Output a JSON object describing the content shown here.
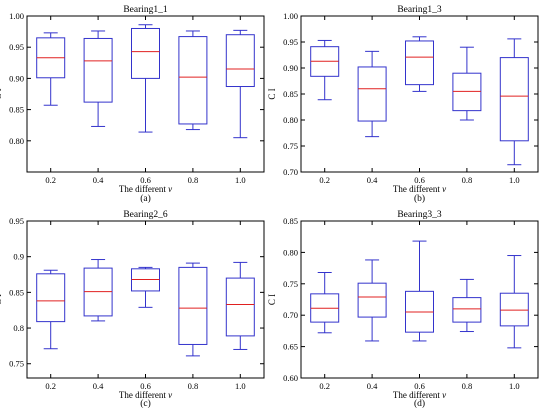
{
  "chart_data": [
    {
      "type": "box",
      "title": "Bearing1_1",
      "ylabel": "C I",
      "xlabel": "The different v",
      "caption": "(a)",
      "categories": [
        "0.2",
        "0.4",
        "0.6",
        "0.8",
        "1.0"
      ],
      "ylim": [
        0.75,
        1.0
      ],
      "yticks": [
        0.8,
        0.85,
        0.9,
        0.95,
        1.0
      ],
      "ytick_labels": [
        "0.80",
        "0.85",
        "0.90",
        "0.95",
        "1.00"
      ],
      "boxes": [
        {
          "min": 0.857,
          "q1": 0.901,
          "median": 0.933,
          "q3": 0.965,
          "max": 0.973
        },
        {
          "min": 0.823,
          "q1": 0.862,
          "median": 0.928,
          "q3": 0.964,
          "max": 0.976
        },
        {
          "min": 0.814,
          "q1": 0.9,
          "median": 0.943,
          "q3": 0.98,
          "max": 0.986
        },
        {
          "min": 0.818,
          "q1": 0.827,
          "median": 0.902,
          "q3": 0.967,
          "max": 0.976
        },
        {
          "min": 0.805,
          "q1": 0.887,
          "median": 0.915,
          "q3": 0.97,
          "max": 0.977
        }
      ]
    },
    {
      "type": "box",
      "title": "Bearing1_3",
      "ylabel": "C I",
      "xlabel": "The different v",
      "caption": "(b)",
      "categories": [
        "0.2",
        "0.4",
        "0.6",
        "0.8",
        "1.0"
      ],
      "ylim": [
        0.7,
        1.0
      ],
      "yticks": [
        0.7,
        0.75,
        0.8,
        0.85,
        0.9,
        0.95,
        1.0
      ],
      "ytick_labels": [
        "0.70",
        "0.75",
        "0.80",
        "0.85",
        "0.90",
        "0.95",
        "1.00"
      ],
      "boxes": [
        {
          "min": 0.839,
          "q1": 0.884,
          "median": 0.913,
          "q3": 0.941,
          "max": 0.953
        },
        {
          "min": 0.768,
          "q1": 0.798,
          "median": 0.86,
          "q3": 0.902,
          "max": 0.932
        },
        {
          "min": 0.855,
          "q1": 0.868,
          "median": 0.921,
          "q3": 0.952,
          "max": 0.96
        },
        {
          "min": 0.8,
          "q1": 0.818,
          "median": 0.855,
          "q3": 0.89,
          "max": 0.94
        },
        {
          "min": 0.714,
          "q1": 0.76,
          "median": 0.846,
          "q3": 0.92,
          "max": 0.956
        }
      ]
    },
    {
      "type": "box",
      "title": "Bearing2_6",
      "ylabel": "C I",
      "xlabel": "The different v",
      "caption": "(c)",
      "categories": [
        "0.2",
        "0.4",
        "0.6",
        "0.8",
        "1.0"
      ],
      "ylim": [
        0.73,
        0.95
      ],
      "yticks": [
        0.75,
        0.8,
        0.85,
        0.9,
        0.95
      ],
      "ytick_labels": [
        "0.75",
        "0.8",
        "0.85",
        "0.9",
        "0.95"
      ],
      "boxes": [
        {
          "min": 0.771,
          "q1": 0.809,
          "median": 0.838,
          "q3": 0.876,
          "max": 0.881
        },
        {
          "min": 0.81,
          "q1": 0.817,
          "median": 0.851,
          "q3": 0.884,
          "max": 0.896
        },
        {
          "min": 0.829,
          "q1": 0.852,
          "median": 0.868,
          "q3": 0.883,
          "max": 0.885
        },
        {
          "min": 0.761,
          "q1": 0.777,
          "median": 0.828,
          "q3": 0.885,
          "max": 0.891
        },
        {
          "min": 0.77,
          "q1": 0.789,
          "median": 0.833,
          "q3": 0.87,
          "max": 0.892
        }
      ]
    },
    {
      "type": "box",
      "title": "Bearing3_3",
      "ylabel": "C I",
      "xlabel": "The different v",
      "caption": "(d)",
      "categories": [
        "0.2",
        "0.4",
        "0.6",
        "0.8",
        "1.0"
      ],
      "ylim": [
        0.6,
        0.85
      ],
      "yticks": [
        0.6,
        0.65,
        0.7,
        0.75,
        0.8,
        0.85
      ],
      "ytick_labels": [
        "0.60",
        "0.65",
        "0.70",
        "0.75",
        "0.80",
        "0.85"
      ],
      "boxes": [
        {
          "min": 0.672,
          "q1": 0.689,
          "median": 0.711,
          "q3": 0.734,
          "max": 0.768
        },
        {
          "min": 0.659,
          "q1": 0.697,
          "median": 0.729,
          "q3": 0.751,
          "max": 0.788
        },
        {
          "min": 0.659,
          "q1": 0.673,
          "median": 0.705,
          "q3": 0.738,
          "max": 0.818
        },
        {
          "min": 0.674,
          "q1": 0.689,
          "median": 0.71,
          "q3": 0.728,
          "max": 0.757
        },
        {
          "min": 0.648,
          "q1": 0.683,
          "median": 0.708,
          "q3": 0.735,
          "max": 0.795
        }
      ]
    }
  ],
  "colors": {
    "box": "#3333cc",
    "median": "#e02020",
    "axis": "#000000"
  }
}
